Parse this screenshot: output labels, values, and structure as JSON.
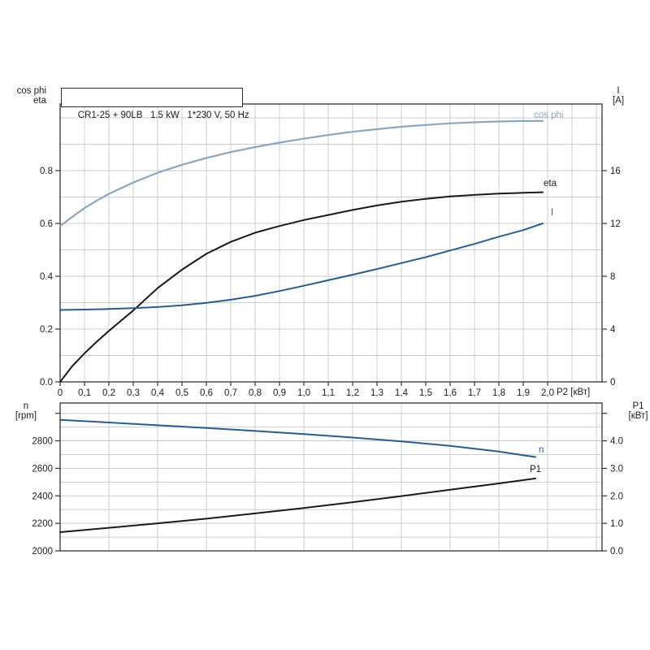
{
  "title_box": "CR1-25 + 90LB   1.5 kW   1*230 V, 50 Hz",
  "colors": {
    "light_blue": "#8ca6bf",
    "dark_blue": "#2b5c8c",
    "black": "#1a1a1a",
    "grid": "#c9cdd2",
    "frame": "#333333"
  },
  "chart_data": [
    {
      "type": "line",
      "x_axis": {
        "label": "P2 [кВт]",
        "min": 0,
        "max": 2.2233,
        "tick_step": 0.1,
        "grid_step": 0.1,
        "tick_labels": [
          "0",
          "0,1",
          "0,2",
          "0,3",
          "0,4",
          "0,5",
          "0,6",
          "0,7",
          "0,8",
          "0,9",
          "1,0",
          "1,1",
          "1,2",
          "1,3",
          "1,4",
          "1,5",
          "1,6",
          "1,7",
          "1,8",
          "1,9",
          "2,0"
        ]
      },
      "y_left": {
        "title_lines": [
          "cos phi",
          "eta"
        ],
        "min": 0,
        "max": 1.0523,
        "grid_step": 0.1,
        "ticks": [
          0,
          0.2,
          0.4,
          0.6,
          0.8
        ],
        "tick_labels": [
          "0.0",
          "0.2",
          "0.4",
          "0.6",
          "0.8"
        ]
      },
      "y_right": {
        "title_lines": [
          "I",
          "[A]"
        ],
        "min": 0,
        "max": 21.05,
        "ticks": [
          0,
          4,
          8,
          12,
          16
        ],
        "tick_labels": [
          "0",
          "4",
          "8",
          "12",
          "16"
        ]
      },
      "series": [
        {
          "name": "cos phi",
          "axis": "left",
          "color": "#8ca6bf",
          "width": 2.2,
          "x": [
            0,
            0.05,
            0.1,
            0.15,
            0.2,
            0.3,
            0.4,
            0.5,
            0.6,
            0.7,
            0.8,
            0.9,
            1.0,
            1.1,
            1.2,
            1.3,
            1.4,
            1.5,
            1.6,
            1.7,
            1.8,
            1.9,
            1.98
          ],
          "y": [
            0.59,
            0.625,
            0.658,
            0.686,
            0.712,
            0.755,
            0.792,
            0.822,
            0.848,
            0.87,
            0.889,
            0.906,
            0.921,
            0.935,
            0.947,
            0.957,
            0.966,
            0.973,
            0.979,
            0.983,
            0.986,
            0.988,
            0.988
          ]
        },
        {
          "name": "eta",
          "axis": "left",
          "color": "#1a1a1a",
          "width": 2,
          "x": [
            0,
            0.05,
            0.1,
            0.15,
            0.2,
            0.25,
            0.3,
            0.35,
            0.4,
            0.5,
            0.6,
            0.7,
            0.8,
            0.9,
            1.0,
            1.1,
            1.2,
            1.3,
            1.4,
            1.5,
            1.6,
            1.7,
            1.8,
            1.9,
            1.98
          ],
          "y": [
            0,
            0.06,
            0.108,
            0.152,
            0.193,
            0.232,
            0.27,
            0.313,
            0.355,
            0.425,
            0.485,
            0.53,
            0.565,
            0.59,
            0.613,
            0.632,
            0.651,
            0.668,
            0.682,
            0.693,
            0.702,
            0.708,
            0.713,
            0.716,
            0.718
          ]
        },
        {
          "name": "I",
          "axis": "right",
          "color": "#2b5c8c",
          "width": 2,
          "x": [
            0,
            0.1,
            0.2,
            0.3,
            0.4,
            0.5,
            0.6,
            0.7,
            0.8,
            0.9,
            1.0,
            1.1,
            1.2,
            1.3,
            1.4,
            1.5,
            1.6,
            1.7,
            1.8,
            1.9,
            1.98
          ],
          "y": [
            5.45,
            5.48,
            5.52,
            5.58,
            5.67,
            5.8,
            5.98,
            6.22,
            6.52,
            6.88,
            7.28,
            7.7,
            8.12,
            8.55,
            9.0,
            9.45,
            9.95,
            10.45,
            11.0,
            11.5,
            12.0
          ]
        }
      ]
    },
    {
      "type": "line",
      "x_axis": {
        "label": "",
        "min": 0,
        "max": 2.2233,
        "tick_step": 0.1,
        "grid_step": 0.2,
        "tick_labels": []
      },
      "y_left": {
        "title_lines": [
          "n",
          "[rpm]"
        ],
        "min": 2000,
        "max": 3075,
        "grid_step": 100,
        "ticks": [
          2000,
          2200,
          2400,
          2600,
          2800,
          3000
        ],
        "tick_labels": [
          "2000",
          "2200",
          "2400",
          "2600",
          "2800",
          ""
        ]
      },
      "y_right": {
        "title_lines": [
          "P1",
          "[кВт]"
        ],
        "min": 0,
        "max": 5.375,
        "ticks": [
          0,
          1,
          2,
          3,
          4,
          5
        ],
        "tick_labels": [
          "0.0",
          "1.0",
          "2.0",
          "3.0",
          "4.0",
          ""
        ]
      },
      "series": [
        {
          "name": "n",
          "axis": "left",
          "color": "#2b5c8c",
          "width": 2,
          "x": [
            0,
            0.2,
            0.4,
            0.6,
            0.8,
            1.0,
            1.2,
            1.4,
            1.6,
            1.8,
            1.95
          ],
          "y": [
            2952,
            2933,
            2913,
            2893,
            2872,
            2849,
            2824,
            2796,
            2763,
            2722,
            2682
          ]
        },
        {
          "name": "P1",
          "axis": "right",
          "color": "#1a1a1a",
          "width": 2,
          "x": [
            0,
            0.2,
            0.4,
            0.6,
            0.8,
            1.0,
            1.2,
            1.4,
            1.6,
            1.8,
            1.95
          ],
          "y": [
            0.68,
            0.84,
            1.0,
            1.17,
            1.36,
            1.56,
            1.77,
            1.99,
            2.22,
            2.45,
            2.63
          ]
        }
      ]
    }
  ]
}
